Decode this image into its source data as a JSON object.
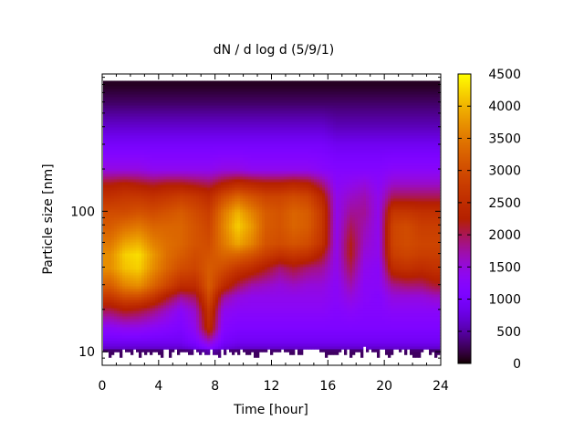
{
  "chart_data": {
    "type": "heatmap",
    "title": "dN / d log d (5/9/1)",
    "xlabel": "Time [hour]",
    "ylabel": "Particle size [nm]",
    "xlim": [
      0,
      24
    ],
    "ylim": [
      8,
      950
    ],
    "yscale": "log",
    "xticks": [
      "0",
      "4",
      "8",
      "12",
      "16",
      "20",
      "24"
    ],
    "yticks": [
      "10",
      "100"
    ],
    "colorbar": {
      "range": [
        0,
        4500
      ],
      "ticks": [
        "0",
        "500",
        "1000",
        "1500",
        "2000",
        "2500",
        "3000",
        "3500",
        "4000",
        "4500"
      ]
    },
    "palette": "black-blue-violet-red-orange-yellow",
    "time_hours": [
      0.5,
      1.5,
      2.5,
      3.5,
      4.5,
      5.5,
      6.5,
      7.5,
      8.5,
      9.5,
      10.5,
      11.5,
      12.5,
      13.5,
      14.5,
      15.5,
      16.5,
      17.5,
      18.5,
      19.5,
      20.5,
      21.5,
      22.5,
      23.5
    ],
    "size_nm": [
      10,
      12,
      15,
      20,
      25,
      30,
      40,
      50,
      60,
      80,
      100,
      130,
      160,
      200,
      300,
      400,
      600,
      800
    ],
    "values": [
      [
        500,
        900,
        1300,
        2000,
        2700,
        3200,
        3700,
        3700,
        3500,
        3200,
        3000,
        2600,
        2200,
        1500,
        1000,
        700,
        300,
        100
      ],
      [
        500,
        900,
        1400,
        2200,
        3000,
        3600,
        4100,
        4200,
        3900,
        3400,
        3000,
        2700,
        2300,
        1500,
        1000,
        700,
        300,
        100
      ],
      [
        500,
        900,
        1400,
        2100,
        3000,
        3700,
        4200,
        4300,
        4000,
        3500,
        3100,
        2700,
        2200,
        1500,
        1000,
        700,
        300,
        100
      ],
      [
        500,
        900,
        1300,
        1900,
        2700,
        3300,
        3700,
        3800,
        3600,
        3300,
        3000,
        2600,
        2100,
        1400,
        1000,
        700,
        300,
        100
      ],
      [
        500,
        900,
        1200,
        1600,
        2200,
        2900,
        3300,
        3400,
        3400,
        3300,
        3100,
        2700,
        2200,
        1400,
        1000,
        700,
        300,
        100
      ],
      [
        500,
        900,
        1100,
        1300,
        1800,
        2500,
        3000,
        3200,
        3300,
        3300,
        3200,
        2800,
        2200,
        1400,
        1000,
        700,
        300,
        100
      ],
      [
        600,
        1100,
        1400,
        1600,
        2000,
        2500,
        2900,
        3000,
        3100,
        3100,
        3000,
        2700,
        2100,
        1400,
        1000,
        700,
        300,
        100
      ],
      [
        900,
        1600,
        2500,
        2700,
        3000,
        3200,
        3200,
        3100,
        3000,
        2900,
        2800,
        2500,
        2000,
        1400,
        1000,
        700,
        300,
        100
      ],
      [
        600,
        1000,
        1200,
        1400,
        1800,
        2500,
        3000,
        3300,
        3500,
        3600,
        3500,
        3000,
        2300,
        1500,
        1000,
        700,
        300,
        100
      ],
      [
        500,
        900,
        1100,
        1300,
        1500,
        2000,
        2700,
        3300,
        3900,
        4200,
        4000,
        3300,
        2500,
        1500,
        1000,
        700,
        300,
        100
      ],
      [
        500,
        900,
        1100,
        1300,
        1400,
        1700,
        2500,
        3100,
        3600,
        3800,
        3600,
        3100,
        2400,
        1400,
        1000,
        700,
        300,
        100
      ],
      [
        500,
        900,
        1100,
        1300,
        1400,
        1600,
        2200,
        2800,
        3100,
        3200,
        3200,
        2900,
        2300,
        1400,
        1000,
        700,
        300,
        100
      ],
      [
        500,
        900,
        1100,
        1300,
        1400,
        1500,
        1900,
        2600,
        3000,
        3100,
        3100,
        2900,
        2300,
        1400,
        1000,
        700,
        300,
        100
      ],
      [
        500,
        900,
        1100,
        1300,
        1400,
        1600,
        2100,
        2700,
        3100,
        3300,
        3300,
        3000,
        2400,
        1400,
        1000,
        700,
        300,
        100
      ],
      [
        500,
        900,
        1100,
        1300,
        1400,
        1500,
        1900,
        2600,
        3000,
        3200,
        3200,
        2900,
        2300,
        1400,
        1000,
        700,
        300,
        100
      ],
      [
        500,
        900,
        1100,
        1300,
        1400,
        1500,
        1800,
        2200,
        2600,
        2700,
        2700,
        2400,
        1900,
        1300,
        1000,
        700,
        300,
        100
      ],
      [
        500,
        900,
        1100,
        1200,
        1300,
        1300,
        1400,
        1400,
        1400,
        1400,
        1400,
        1400,
        1300,
        1200,
        900,
        600,
        300,
        100
      ],
      [
        500,
        900,
        1100,
        1300,
        1500,
        1700,
        2000,
        2200,
        2200,
        2000,
        1800,
        1600,
        1400,
        1200,
        900,
        600,
        300,
        100
      ],
      [
        500,
        900,
        1100,
        1200,
        1300,
        1300,
        1400,
        1500,
        1600,
        1700,
        1800,
        1700,
        1500,
        1200,
        900,
        600,
        300,
        100
      ],
      [
        500,
        900,
        1100,
        1200,
        1200,
        1300,
        1300,
        1400,
        1400,
        1400,
        1400,
        1400,
        1300,
        1200,
        900,
        600,
        300,
        100
      ],
      [
        500,
        900,
        1100,
        1300,
        1500,
        1800,
        2500,
        2800,
        2900,
        2900,
        2700,
        2000,
        1600,
        1300,
        900,
        600,
        300,
        100
      ],
      [
        500,
        900,
        1100,
        1300,
        1500,
        1900,
        2600,
        2900,
        3000,
        3000,
        2700,
        2000,
        1600,
        1300,
        900,
        600,
        300,
        100
      ],
      [
        500,
        900,
        1100,
        1300,
        1500,
        1900,
        2500,
        2800,
        2900,
        2800,
        2600,
        2000,
        1600,
        1300,
        900,
        600,
        300,
        100
      ],
      [
        500,
        900,
        1100,
        1300,
        1600,
        2100,
        2600,
        2800,
        2900,
        2800,
        2600,
        2000,
        1600,
        1300,
        900,
        600,
        300,
        100
      ]
    ]
  }
}
